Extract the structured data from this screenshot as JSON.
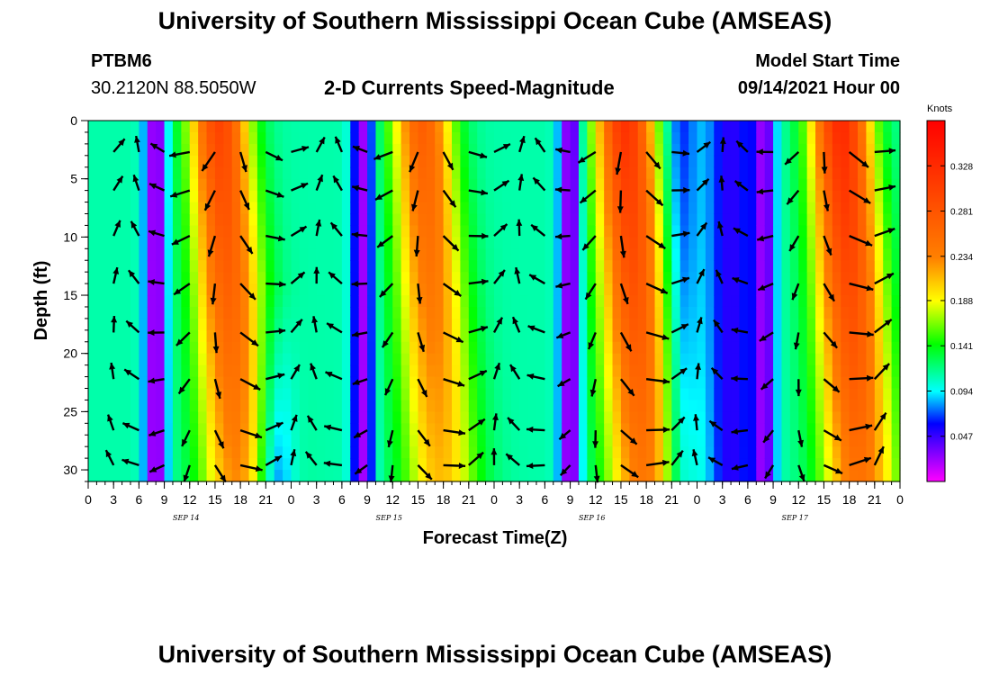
{
  "header": {
    "title": "University of Southern Mississippi Ocean Cube (AMSEAS)",
    "station": "PTBM6",
    "location": "30.2120N  88.5050W",
    "plot_title": "2-D Currents Speed-Magnitude",
    "model_start_label": "Model Start Time",
    "model_start_value": "09/14/2021 Hour 00"
  },
  "footer": {
    "title": "University of Southern Mississippi Ocean Cube (AMSEAS)"
  },
  "chart_data": {
    "type": "heatmap",
    "title": "2-D Currents Speed-Magnitude",
    "xlabel": "Forecast Time(Z)",
    "ylabel": "Depth (ft)",
    "x_range_hours": [
      0,
      96
    ],
    "ylim": [
      31,
      0
    ],
    "x_tick_labels": [
      "0",
      "3",
      "6",
      "9",
      "12",
      "15",
      "18",
      "21",
      "0",
      "3",
      "6",
      "9",
      "12",
      "15",
      "18",
      "21",
      "0",
      "3",
      "6",
      "9",
      "12",
      "15",
      "18",
      "21",
      "0",
      "3",
      "6",
      "9",
      "12",
      "15",
      "18",
      "21",
      "0"
    ],
    "y_ticks": [
      0,
      5,
      10,
      15,
      20,
      25,
      30
    ],
    "y_tick_labels": [
      "0",
      "5",
      "10",
      "15",
      "20",
      "25",
      "30"
    ],
    "date_labels": [
      {
        "label": "SEP 14",
        "hour": 12
      },
      {
        "label": "SEP 15",
        "hour": 36
      },
      {
        "label": "SEP 16",
        "hour": 60
      },
      {
        "label": "SEP 17",
        "hour": 84
      }
    ],
    "colorbar": {
      "unit_label": "Knots",
      "range": [
        0.0,
        0.375
      ],
      "ticks": [
        0.047,
        0.094,
        0.141,
        0.188,
        0.234,
        0.281,
        0.328
      ],
      "tick_labels": [
        "0.047",
        "0.094",
        "0.141",
        "0.188",
        "0.234",
        "0.281",
        "0.328"
      ]
    },
    "arrow_depths_ft": [
      2.7,
      6,
      9.9,
      14,
      18.2,
      22.2,
      26.6,
      29.6
    ],
    "speed_peaks": [
      {
        "hour": 15.5,
        "speed": 0.3
      },
      {
        "hour": 39.5,
        "speed": 0.27
      },
      {
        "hour": 63.5,
        "speed": 0.32
      },
      {
        "hour": 89.0,
        "speed": 0.33
      }
    ],
    "speed_minima": [
      {
        "hour": 8.0,
        "speed": 0.01
      },
      {
        "hour": 32.5,
        "speed": 0.02
      },
      {
        "hour": 57.0,
        "speed": 0.01
      },
      {
        "hour": 80.0,
        "speed": 0.03
      }
    ]
  }
}
